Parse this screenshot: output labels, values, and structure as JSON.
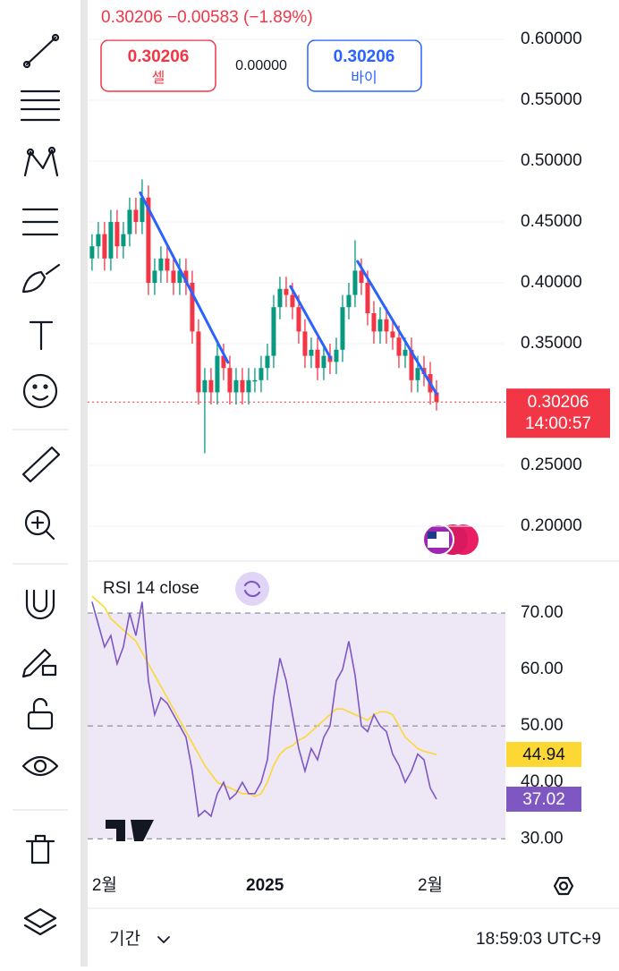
{
  "header": {
    "quote": "0.30206",
    "change": "−0.00583",
    "change_pct": "(−1.89%)",
    "sell_price": "0.30206",
    "sell_label": "셀",
    "spread": "0.00000",
    "buy_price": "0.30206",
    "buy_label": "바이"
  },
  "chart_data": [
    {
      "type": "candlestick",
      "up_color": "#089981",
      "down_color": "#f23645",
      "open": [
        0.42,
        0.43,
        0.44,
        0.42,
        0.45,
        0.43,
        0.44,
        0.46,
        0.45,
        0.47,
        0.4,
        0.41,
        0.42,
        0.41,
        0.4,
        0.41,
        0.4,
        0.36,
        0.31,
        0.32,
        0.31,
        0.34,
        0.33,
        0.31,
        0.32,
        0.31,
        0.32,
        0.32,
        0.33,
        0.34,
        0.38,
        0.395,
        0.39,
        0.38,
        0.36,
        0.34,
        0.345,
        0.33,
        0.34,
        0.335,
        0.345,
        0.38,
        0.39,
        0.41,
        0.4,
        0.375,
        0.36,
        0.37,
        0.36,
        0.355,
        0.34,
        0.345,
        0.32,
        0.33,
        0.325,
        0.31
      ],
      "high": [
        0.44,
        0.45,
        0.45,
        0.46,
        0.46,
        0.45,
        0.47,
        0.47,
        0.485,
        0.48,
        0.42,
        0.43,
        0.43,
        0.42,
        0.42,
        0.42,
        0.41,
        0.37,
        0.33,
        0.33,
        0.35,
        0.35,
        0.34,
        0.33,
        0.33,
        0.33,
        0.33,
        0.34,
        0.35,
        0.39,
        0.405,
        0.405,
        0.4,
        0.39,
        0.37,
        0.355,
        0.355,
        0.35,
        0.35,
        0.355,
        0.39,
        0.4,
        0.435,
        0.42,
        0.41,
        0.385,
        0.38,
        0.38,
        0.37,
        0.365,
        0.355,
        0.355,
        0.34,
        0.34,
        0.335,
        0.32
      ],
      "low": [
        0.41,
        0.42,
        0.41,
        0.41,
        0.42,
        0.42,
        0.43,
        0.44,
        0.44,
        0.39,
        0.39,
        0.4,
        0.4,
        0.39,
        0.39,
        0.39,
        0.35,
        0.3,
        0.26,
        0.3,
        0.3,
        0.32,
        0.3,
        0.3,
        0.3,
        0.3,
        0.31,
        0.31,
        0.32,
        0.33,
        0.37,
        0.38,
        0.37,
        0.35,
        0.33,
        0.33,
        0.32,
        0.32,
        0.325,
        0.325,
        0.335,
        0.37,
        0.38,
        0.39,
        0.365,
        0.35,
        0.35,
        0.35,
        0.345,
        0.33,
        0.33,
        0.31,
        0.31,
        0.315,
        0.3,
        0.295
      ],
      "close": [
        0.43,
        0.44,
        0.42,
        0.45,
        0.43,
        0.44,
        0.46,
        0.45,
        0.47,
        0.4,
        0.41,
        0.42,
        0.41,
        0.4,
        0.41,
        0.4,
        0.36,
        0.31,
        0.32,
        0.31,
        0.34,
        0.33,
        0.31,
        0.32,
        0.31,
        0.32,
        0.32,
        0.33,
        0.34,
        0.38,
        0.395,
        0.39,
        0.38,
        0.36,
        0.34,
        0.345,
        0.33,
        0.34,
        0.335,
        0.345,
        0.38,
        0.39,
        0.41,
        0.4,
        0.375,
        0.36,
        0.37,
        0.36,
        0.355,
        0.34,
        0.345,
        0.32,
        0.33,
        0.325,
        0.31,
        0.30206
      ],
      "trend_lines": [
        {
          "color": "#2962ff",
          "x": [
            7.7,
            21.7
          ],
          "y": [
            0.474,
            0.3346
          ]
        },
        {
          "color": "#2962ff",
          "x": [
            31.7,
            38.1
          ],
          "y": [
            0.397,
            0.338
          ]
        },
        {
          "color": "#2962ff",
          "x": [
            42.4,
            55
          ],
          "y": [
            0.4176,
            0.3088
          ]
        }
      ],
      "last_price": 0.30206,
      "last_label": "0.30206",
      "countdown": "14:00:57",
      "xlim": [
        -0.7,
        66
      ],
      "ylim": [
        0.1713,
        0.6324
      ],
      "yticks": [
        {
          "value": 0.6,
          "label": "0.60000"
        },
        {
          "value": 0.55,
          "label": "0.55000"
        },
        {
          "value": 0.5,
          "label": "0.50000"
        },
        {
          "value": 0.45,
          "label": "0.45000"
        },
        {
          "value": 0.4,
          "label": "0.40000"
        },
        {
          "value": 0.35,
          "label": "0.35000"
        },
        {
          "value": 0.25,
          "label": "0.25000"
        },
        {
          "value": 0.2,
          "label": "0.20000"
        }
      ],
      "grid": true
    },
    {
      "type": "line",
      "title": "RSI 14 close",
      "xlim": [
        -0.7,
        66
      ],
      "ylim": [
        25.6,
        79.2
      ],
      "series": [
        {
          "name": "RSI",
          "color": "#7e57c2",
          "values": [
            72,
            68,
            64,
            66,
            61,
            64,
            70,
            66,
            72,
            58,
            52,
            55,
            54,
            52,
            50,
            48,
            42,
            34,
            35,
            34,
            38,
            40,
            37,
            38,
            40,
            38,
            38,
            40,
            44,
            55,
            62,
            58,
            52,
            46,
            42,
            46,
            44,
            48,
            50,
            58,
            60,
            65,
            59,
            50,
            49,
            52,
            50,
            49,
            45,
            43,
            40,
            42,
            45,
            44,
            39,
            37.02
          ],
          "value_label": "37.02"
        },
        {
          "name": "RSI MA",
          "color": "#fdd835",
          "values": [
            73,
            72,
            71,
            69,
            68,
            67,
            66,
            65,
            63,
            61,
            59,
            57,
            55,
            53,
            51,
            49,
            47,
            45,
            43,
            41.5,
            40,
            39.5,
            39,
            38.5,
            38,
            38,
            37.5,
            38,
            40,
            43,
            45,
            46,
            46.5,
            47.5,
            48,
            49,
            50,
            51,
            52,
            53,
            53,
            52.5,
            52,
            51.5,
            51,
            52,
            52.5,
            52.5,
            52,
            50,
            48,
            47,
            46,
            45.5,
            45.2,
            44.94
          ],
          "value_label": "44.94"
        }
      ],
      "band": [
        30,
        70
      ],
      "band_color": "#ede7f6",
      "yticks": [
        {
          "value": 70,
          "label": "70.00"
        },
        {
          "value": 60,
          "label": "60.00"
        },
        {
          "value": 50,
          "label": "50.00"
        },
        {
          "value": 40,
          "label": "40.00"
        },
        {
          "value": 30,
          "label": "30.00"
        }
      ],
      "xticks": [
        {
          "value": 2,
          "label": "2월"
        },
        {
          "value": 27.6,
          "label": "2025"
        },
        {
          "value": 54,
          "label": "2월"
        }
      ]
    }
  ],
  "footer": {
    "period": "기간",
    "clock": "18:59:03 UTC+9"
  }
}
